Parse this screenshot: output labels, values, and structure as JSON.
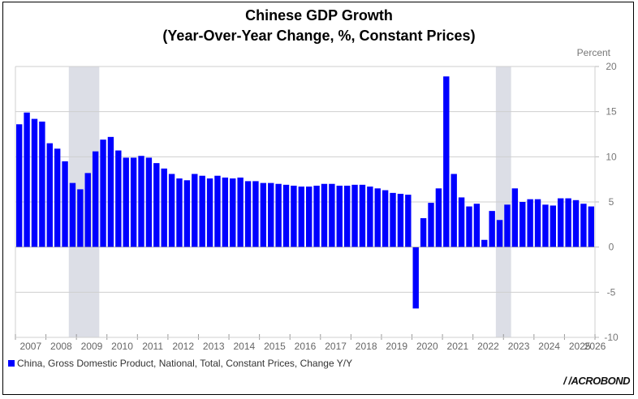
{
  "chart_data": {
    "type": "bar",
    "title": "Chinese GDP Growth",
    "subtitle": "(Year-Over-Year Change, %, Constant Prices)",
    "ylabel": "Percent",
    "ylim": [
      -10,
      20
    ],
    "yticks": [
      -10,
      -5,
      0,
      5,
      10,
      15,
      20
    ],
    "xlim": [
      2007,
      2026
    ],
    "xticks": [
      "2007",
      "2008",
      "2009",
      "2010",
      "2011",
      "2012",
      "2013",
      "2014",
      "2015",
      "2016",
      "2017",
      "2018",
      "2019",
      "2020",
      "2021",
      "2022",
      "2023",
      "2024",
      "2025",
      "2026"
    ],
    "frequency": "quarterly",
    "start": "2007 Q1",
    "grid": true,
    "legend_placement": "bottom-left",
    "series": [
      {
        "name": "China, Gross Domestic Product, National, Total, Constant Prices, Change Y/Y",
        "color": "#0000ff",
        "values": [
          13.6,
          14.9,
          14.2,
          13.9,
          11.5,
          10.9,
          9.5,
          7.1,
          6.4,
          8.2,
          10.6,
          11.9,
          12.2,
          10.7,
          9.9,
          9.9,
          10.1,
          9.9,
          9.3,
          8.7,
          8.1,
          7.6,
          7.4,
          8.1,
          7.9,
          7.6,
          7.9,
          7.7,
          7.6,
          7.7,
          7.3,
          7.3,
          7.1,
          7.1,
          7.0,
          6.9,
          6.8,
          6.7,
          6.7,
          6.8,
          7.0,
          7.0,
          6.8,
          6.8,
          6.9,
          6.9,
          6.7,
          6.5,
          6.3,
          6.0,
          5.9,
          5.8,
          -6.8,
          3.2,
          4.9,
          6.5,
          18.9,
          8.1,
          5.5,
          4.5,
          4.8,
          0.8,
          4.0,
          3.0,
          4.7,
          6.5,
          5.0,
          5.3,
          5.3,
          4.7,
          4.6,
          5.4,
          5.4,
          5.2,
          4.8,
          4.5
        ]
      }
    ],
    "shaded_periods": [
      {
        "from": "2008 Q4",
        "to": "2009 Q3"
      },
      {
        "from": "2022 Q4",
        "to": "2023 Q1"
      }
    ],
    "shade_color": "#dcdee6"
  },
  "logo": "MACROBOND"
}
